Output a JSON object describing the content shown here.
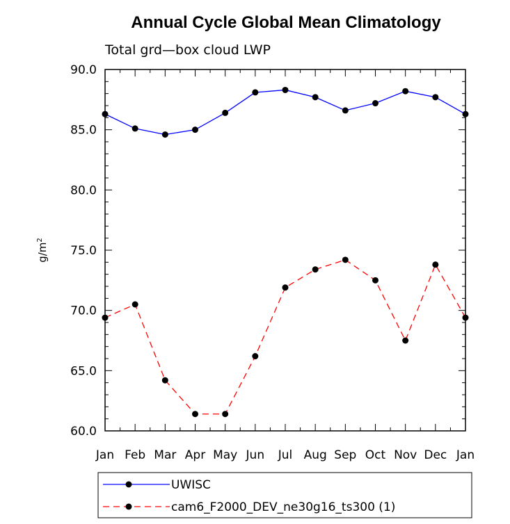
{
  "chart_data": {
    "type": "line",
    "title": "Annual Cycle Global Mean Climatology",
    "subtitle": "Total grd—box cloud LWP",
    "xlabel": "",
    "ylabel": "g/m",
    "ylabel_superscript": "2",
    "categories": [
      "Jan",
      "Feb",
      "Mar",
      "Apr",
      "May",
      "Jun",
      "Jul",
      "Aug",
      "Sep",
      "Oct",
      "Nov",
      "Dec",
      "Jan"
    ],
    "ylim": [
      60.0,
      90.0
    ],
    "yticks": [
      "60.0",
      "65.0",
      "70.0",
      "75.0",
      "80.0",
      "85.0",
      "90.0"
    ],
    "series": [
      {
        "name": "UWISC",
        "color": "#0000ff",
        "dash": "solid",
        "values": [
          86.3,
          85.1,
          84.6,
          85.0,
          86.4,
          88.1,
          88.3,
          87.7,
          86.6,
          87.2,
          88.2,
          87.7,
          86.3
        ]
      },
      {
        "name": "cam6_F2000_DEV_ne30g16_ts300 (1)",
        "color": "#ff0000",
        "dash": "dashed",
        "values": [
          69.4,
          70.5,
          64.2,
          61.4,
          61.4,
          66.2,
          71.9,
          73.4,
          74.2,
          72.5,
          67.5,
          73.8,
          69.4
        ]
      }
    ],
    "legend_position": "bottom"
  }
}
